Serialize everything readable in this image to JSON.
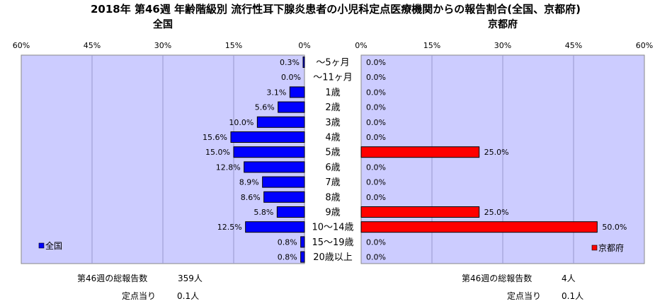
{
  "chart_data": {
    "type": "bar",
    "title": "2018年 第46週 年齢階級別 流行性耳下腺炎患者の小児科定点医療機関からの報告割合(全国、京都府)",
    "categories": [
      "～5ヶ月",
      "～11ヶ月",
      "1歳",
      "2歳",
      "3歳",
      "4歳",
      "5歳",
      "6歳",
      "7歳",
      "8歳",
      "9歳",
      "10～14歳",
      "15～19歳",
      "20歳以上"
    ],
    "xlim": [
      0,
      60
    ],
    "x_ticks": [
      "60%",
      "45%",
      "30%",
      "15%",
      "0%",
      "0%",
      "15%",
      "30%",
      "45%",
      "60%"
    ],
    "grid": true,
    "series": [
      {
        "name": "全国",
        "panel_title": "全国",
        "color": "#0000FF",
        "legend_position": "bottom-left",
        "values": [
          0.3,
          0.0,
          3.1,
          5.6,
          10.0,
          15.6,
          15.0,
          12.8,
          8.9,
          8.6,
          5.8,
          12.5,
          0.8,
          0.8
        ],
        "labels": [
          "0.3%",
          "0.0%",
          "3.1%",
          "5.6%",
          "10.0%",
          "15.6%",
          "15.0%",
          "12.8%",
          "8.9%",
          "8.6%",
          "5.8%",
          "12.5%",
          "0.8%",
          "0.8%"
        ]
      },
      {
        "name": "京都府",
        "panel_title": "京都府",
        "color": "#FF0000",
        "legend_position": "bottom-right",
        "values": [
          0.0,
          0.0,
          0.0,
          0.0,
          0.0,
          0.0,
          25.0,
          0.0,
          0.0,
          0.0,
          25.0,
          50.0,
          0.0,
          0.0
        ],
        "labels": [
          "0.0%",
          "0.0%",
          "0.0%",
          "0.0%",
          "0.0%",
          "0.0%",
          "25.0%",
          "0.0%",
          "0.0%",
          "0.0%",
          "25.0%",
          "50.0%",
          "0.0%",
          "0.0%"
        ]
      }
    ]
  },
  "footer": {
    "left": {
      "total_label": "第46週の総報告数",
      "total_value": "359人",
      "per_label": "定点当り",
      "per_value": "0.1人"
    },
    "right": {
      "total_label": "第46週の総報告数",
      "total_value": "4人",
      "per_label": "定点当り",
      "per_value": "0.1人"
    }
  }
}
